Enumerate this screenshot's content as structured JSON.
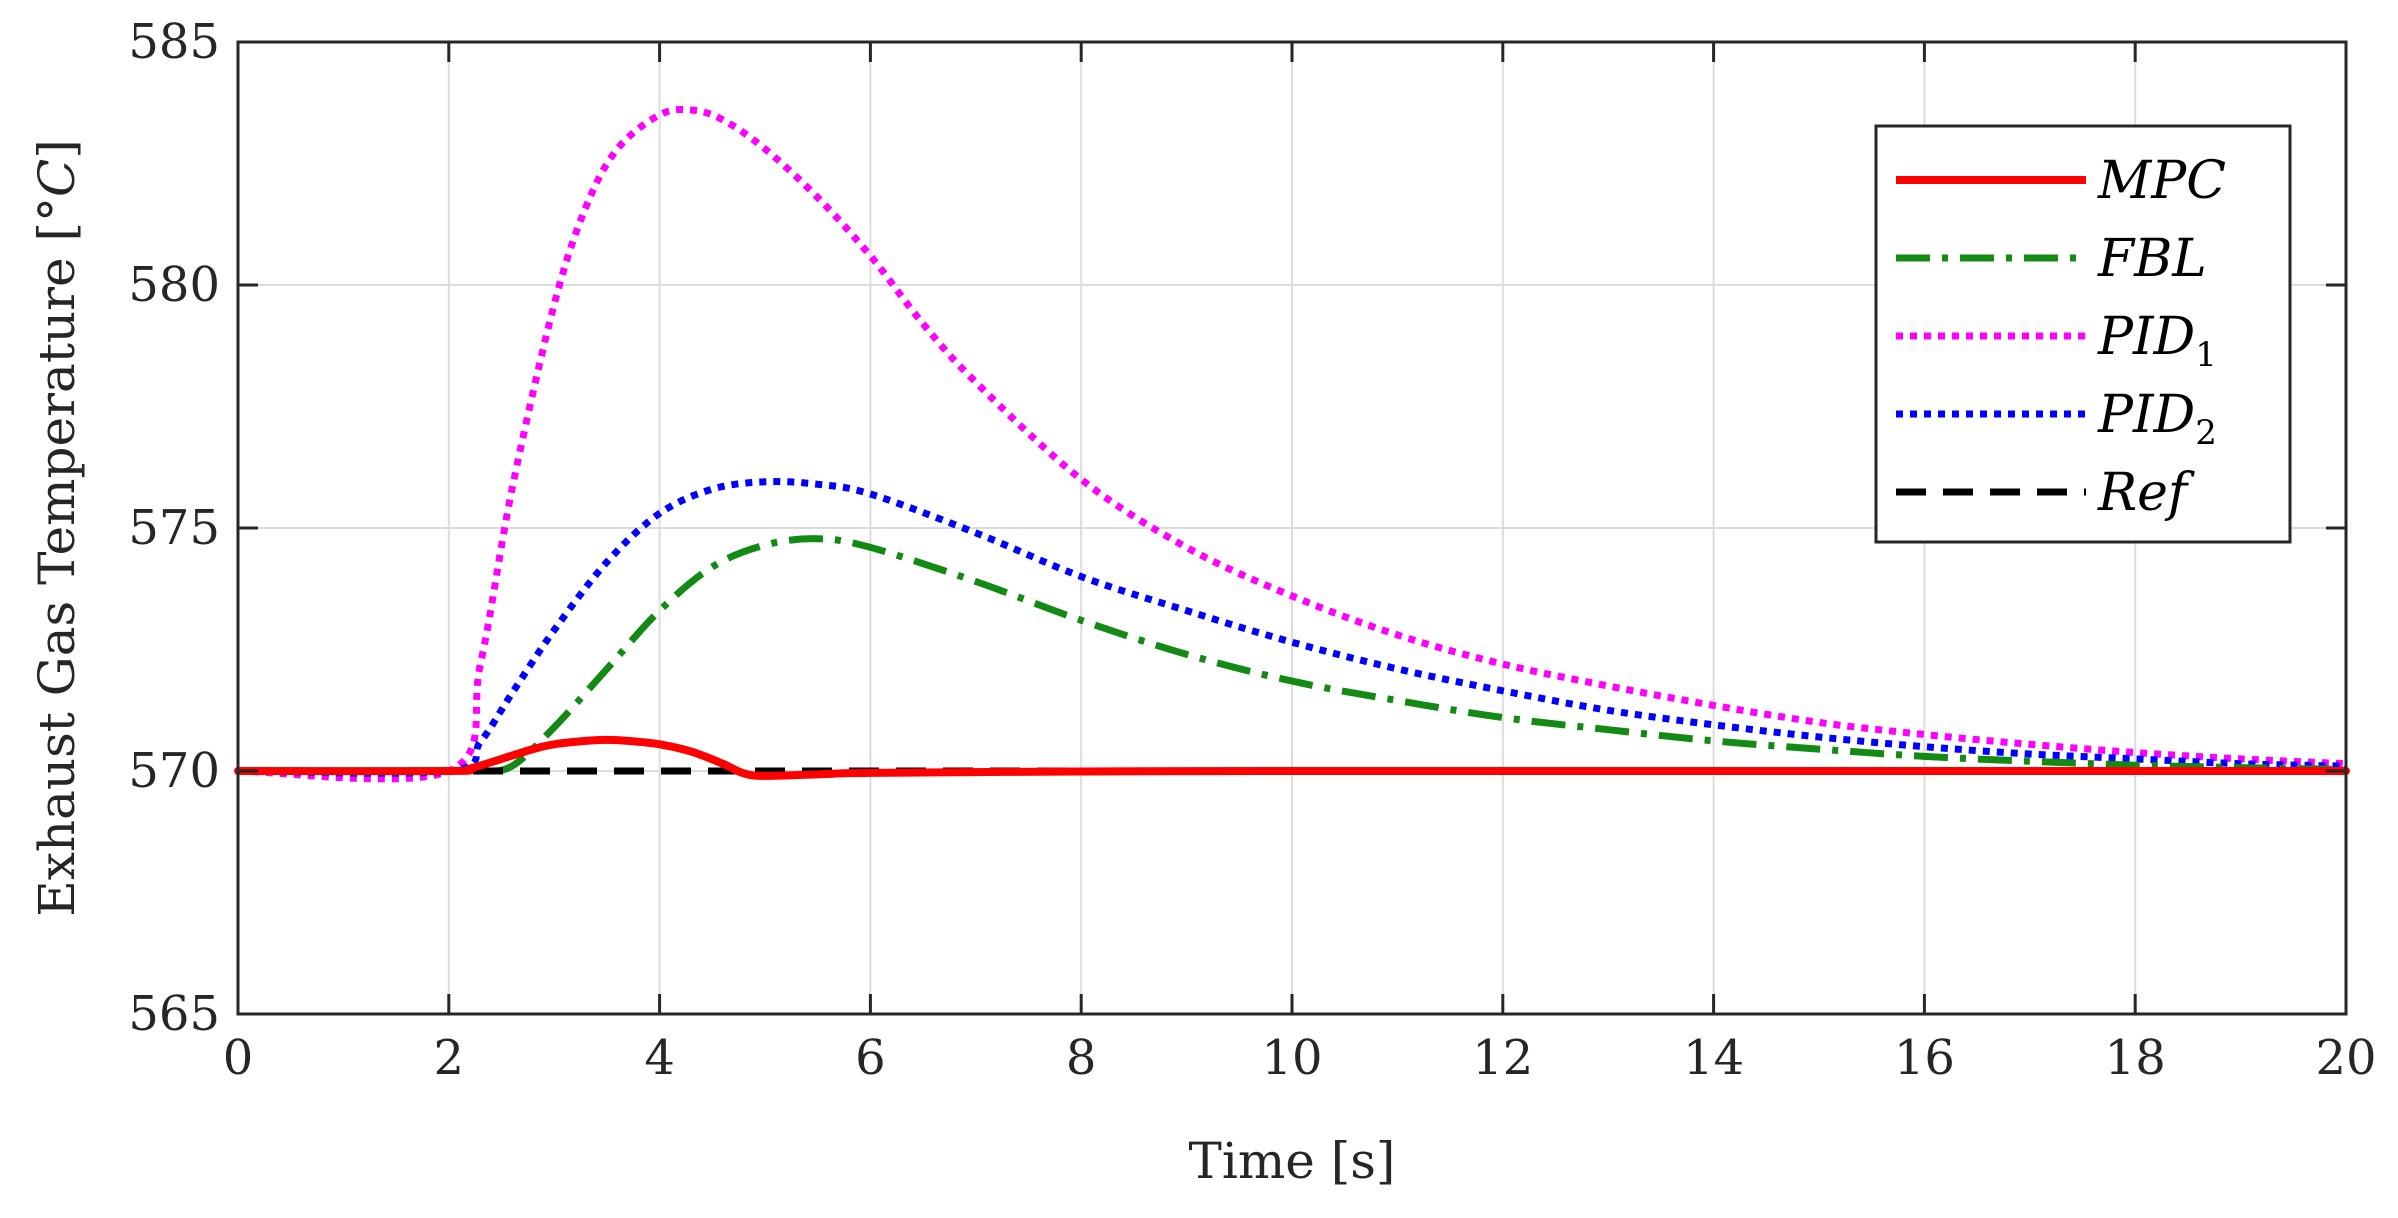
{
  "chart_data": {
    "type": "line",
    "title": "",
    "xlabel": "Time [s]",
    "ylabel": "Exhaust Gas Temperature [°C]",
    "ylabel_parts": {
      "main": "Exhaust Gas Temperature [°",
      "unit": "C",
      "close": "]"
    },
    "xlim": [
      0,
      20
    ],
    "ylim": [
      565,
      585
    ],
    "xticks": [
      0,
      2,
      4,
      6,
      8,
      10,
      12,
      14,
      16,
      18,
      20
    ],
    "yticks": [
      565,
      570,
      575,
      580,
      585
    ],
    "grid": true,
    "legend_position": "top-right",
    "series": [
      {
        "name": "MPC",
        "label_main": "MPC",
        "label_sub": "",
        "color": "#ff0000",
        "style": "solid",
        "x": [
          0,
          2,
          2.2,
          2.5,
          2.8,
          3.0,
          3.3,
          3.5,
          3.7,
          4.0,
          4.3,
          4.6,
          4.8,
          5.0,
          5.5,
          6,
          8,
          10,
          12,
          14,
          16,
          18,
          20
        ],
        "y": [
          570,
          570,
          570.05,
          570.25,
          570.45,
          570.55,
          570.62,
          570.64,
          570.62,
          570.55,
          570.4,
          570.15,
          569.95,
          569.9,
          569.93,
          569.96,
          569.99,
          570,
          570,
          570,
          570,
          570,
          570
        ]
      },
      {
        "name": "FBL",
        "label_main": "FBL",
        "label_sub": "",
        "color": "#138a13",
        "style": "dashdot",
        "x": [
          0,
          2,
          2.3,
          2.6,
          3.0,
          3.5,
          4.0,
          4.5,
          5.0,
          5.5,
          6.0,
          7,
          8,
          9,
          10,
          11,
          12,
          13,
          14,
          15,
          16,
          17,
          18,
          19,
          20
        ],
        "y": [
          570,
          570,
          570,
          570.1,
          570.9,
          572.1,
          573.3,
          574.2,
          574.65,
          574.78,
          574.6,
          573.9,
          573.1,
          572.4,
          571.85,
          571.45,
          571.1,
          570.85,
          570.62,
          570.45,
          570.3,
          570.2,
          570.12,
          570.07,
          570.03
        ]
      },
      {
        "name": "PID_1",
        "label_main": "PID",
        "label_sub": "1",
        "color": "#ff00ff",
        "style": "dotted",
        "x": [
          0,
          2,
          2.3,
          2.6,
          3.0,
          3.3,
          3.6,
          4.0,
          4.3,
          4.6,
          5.0,
          5.5,
          6.0,
          6.5,
          7,
          8,
          9,
          10,
          11,
          12,
          13,
          14,
          15,
          16,
          17,
          18,
          19,
          20
        ],
        "y": [
          570,
          570,
          572.2,
          575.8,
          579.6,
          581.6,
          582.8,
          583.5,
          583.6,
          583.4,
          582.8,
          581.8,
          580.6,
          579.2,
          578,
          576,
          574.6,
          573.6,
          572.8,
          572.2,
          571.75,
          571.35,
          571.0,
          570.75,
          570.55,
          570.38,
          570.25,
          570.15
        ]
      },
      {
        "name": "PID_2",
        "label_main": "PID",
        "label_sub": "2",
        "color": "#0000ff",
        "style": "dotted",
        "x": [
          0,
          2,
          2.3,
          2.6,
          3.0,
          3.5,
          4.0,
          4.5,
          5.0,
          5.5,
          6.0,
          7,
          8,
          9,
          10,
          11,
          12,
          13,
          14,
          15,
          16,
          17,
          18,
          19,
          20
        ],
        "y": [
          570,
          570,
          570.6,
          571.6,
          572.9,
          574.3,
          575.3,
          575.8,
          575.95,
          575.9,
          575.7,
          574.9,
          574.0,
          573.3,
          572.65,
          572.1,
          571.65,
          571.25,
          570.95,
          570.7,
          570.5,
          570.35,
          570.25,
          570.15,
          570.1
        ]
      },
      {
        "name": "Ref",
        "label_main": "Ref",
        "label_sub": "",
        "color": "#000000",
        "style": "dashed",
        "x": [
          0,
          20
        ],
        "y": [
          570,
          570
        ]
      }
    ]
  }
}
